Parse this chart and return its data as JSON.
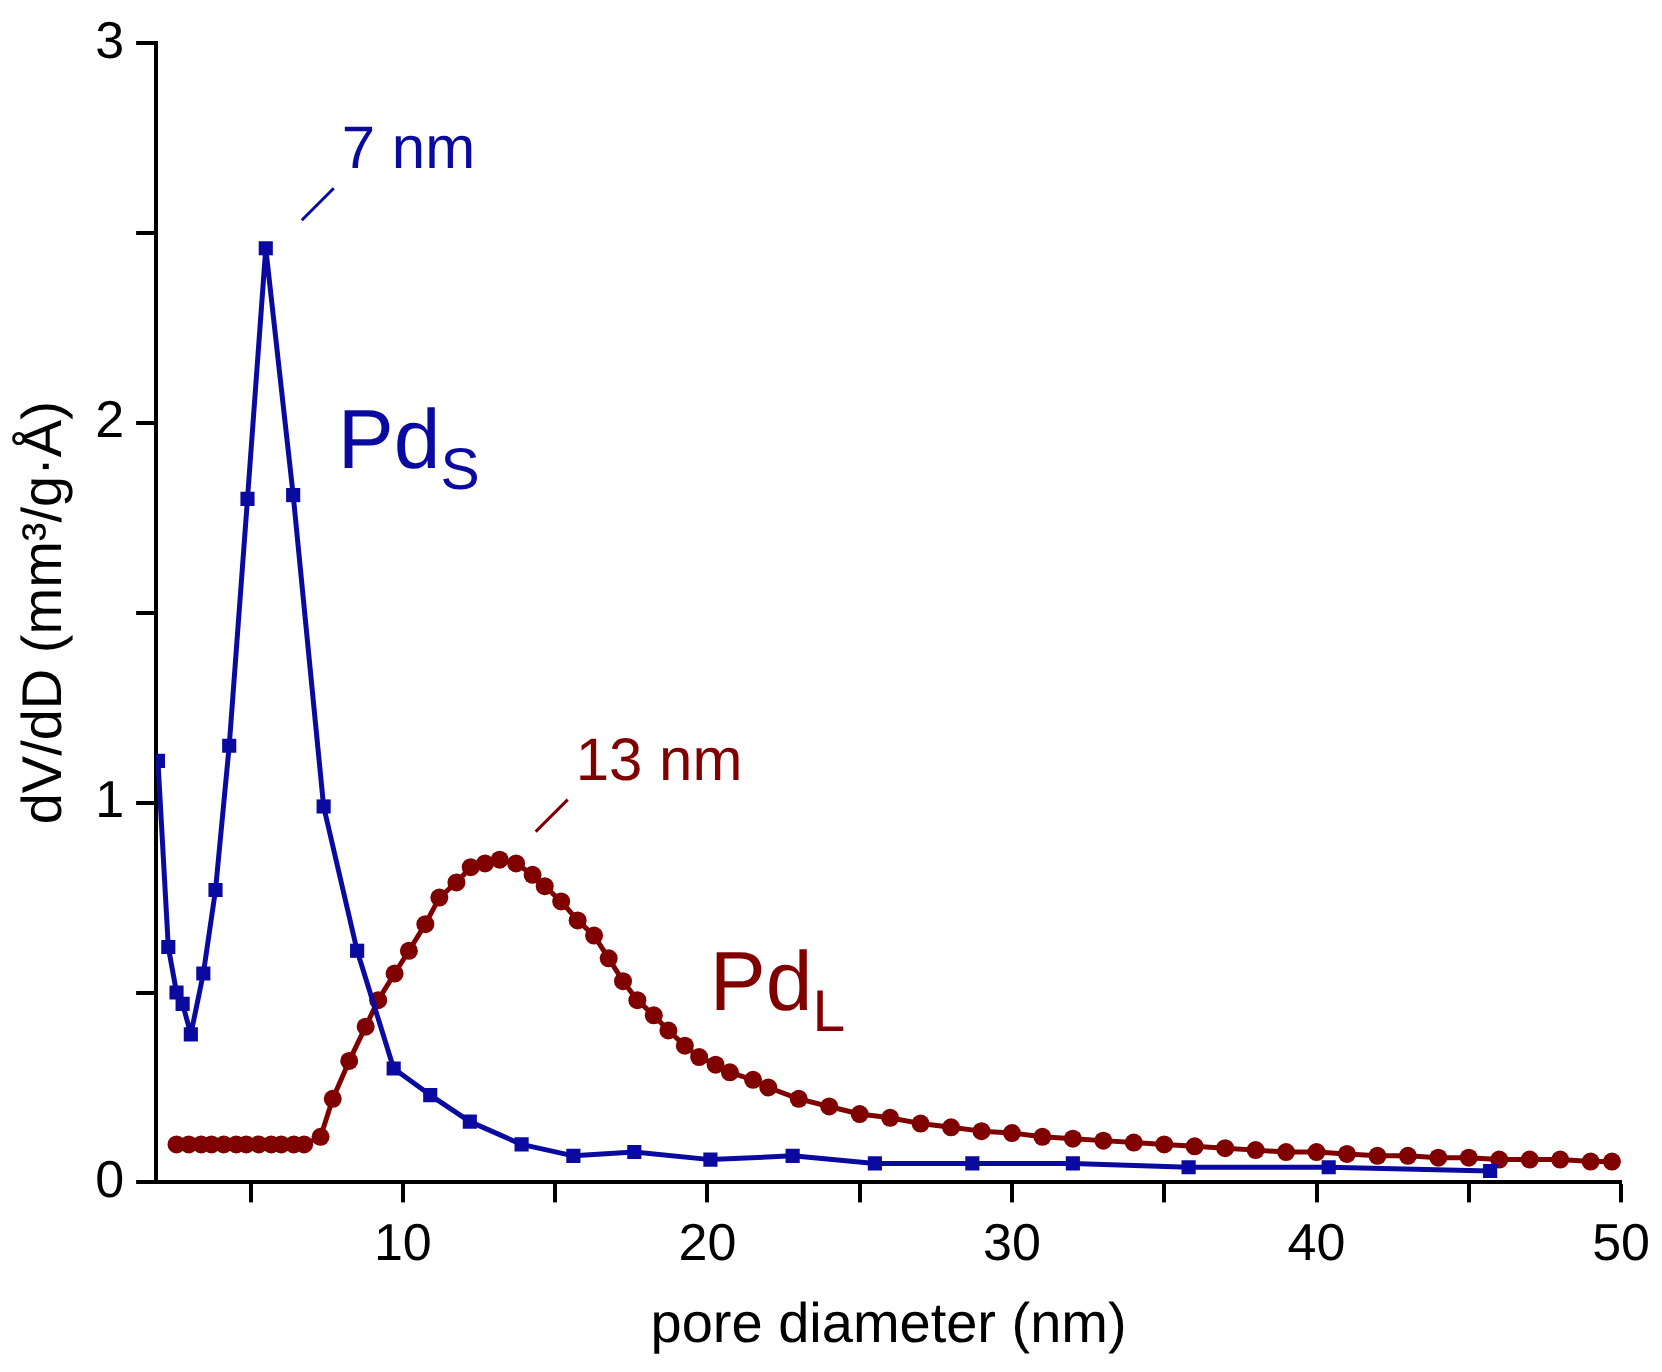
{
  "chart_data": {
    "type": "line",
    "xlabel": "pore diameter (nm)",
    "ylabel": "dV/dD (mm³/g·Å)",
    "xlim": [
      1.9,
      50
    ],
    "xticks": [
      {
        "value": 5,
        "label": null
      },
      10,
      {
        "value": 15,
        "label": null
      },
      20,
      {
        "value": 25,
        "label": null
      },
      30,
      {
        "value": 35,
        "label": null
      },
      40,
      {
        "value": 45,
        "label": null
      },
      50
    ],
    "ylim": [
      0,
      3
    ],
    "yticks": [
      0,
      {
        "value": 0.5,
        "label": null
      },
      1,
      {
        "value": 1.5,
        "label": null
      },
      2,
      {
        "value": 2.5,
        "label": null
      },
      3
    ],
    "series": [
      {
        "name": "Pd$_{S}$",
        "color": "#0a0aa0",
        "marker": "square",
        "x": [
          1.96,
          2.3,
          2.57,
          2.77,
          3.04,
          3.45,
          3.85,
          4.3,
          4.9,
          5.5,
          6.4,
          7.4,
          8.5,
          9.7,
          10.9,
          12.2,
          13.9,
          15.6,
          17.6,
          20.1,
          22.8,
          25.5,
          28.7,
          32.0,
          35.8,
          40.4,
          45.7
        ],
        "values": [
          1.11,
          0.62,
          0.5,
          0.47,
          0.39,
          0.55,
          0.77,
          1.15,
          1.8,
          2.46,
          1.81,
          0.99,
          0.61,
          0.3,
          0.23,
          0.16,
          0.1,
          0.07,
          0.08,
          0.06,
          0.07,
          0.05,
          0.05,
          0.05,
          0.04,
          0.04,
          0.03
        ]
      },
      {
        "name": "Pd$_{L}$",
        "color": "#800000",
        "marker": "circle",
        "x": [
          2.57,
          2.97,
          3.38,
          3.72,
          4.12,
          4.53,
          4.86,
          5.27,
          5.68,
          6.01,
          6.42,
          6.76,
          7.3,
          7.7,
          8.24,
          8.78,
          9.19,
          9.73,
          10.2,
          10.74,
          11.2,
          11.76,
          12.23,
          12.7,
          13.18,
          13.72,
          14.26,
          14.66,
          15.2,
          15.74,
          16.28,
          16.76,
          17.23,
          17.7,
          18.24,
          18.72,
          19.26,
          19.73,
          20.27,
          20.74,
          21.5,
          22,
          23,
          24,
          25,
          26,
          27,
          28,
          29,
          30,
          31,
          32,
          33,
          34,
          35,
          36,
          37,
          38,
          39,
          40,
          41,
          42,
          43,
          44,
          45,
          46,
          47,
          48,
          49,
          49.7
        ],
        "values": [
          0.1,
          0.1,
          0.1,
          0.1,
          0.1,
          0.1,
          0.1,
          0.1,
          0.1,
          0.1,
          0.1,
          0.1,
          0.12,
          0.22,
          0.32,
          0.41,
          0.48,
          0.55,
          0.61,
          0.68,
          0.75,
          0.79,
          0.83,
          0.84,
          0.85,
          0.84,
          0.81,
          0.78,
          0.74,
          0.69,
          0.65,
          0.59,
          0.53,
          0.48,
          0.44,
          0.4,
          0.36,
          0.33,
          0.31,
          0.29,
          0.27,
          0.25,
          0.22,
          0.2,
          0.18,
          0.17,
          0.155,
          0.145,
          0.135,
          0.13,
          0.12,
          0.115,
          0.11,
          0.105,
          0.1,
          0.095,
          0.09,
          0.085,
          0.08,
          0.08,
          0.075,
          0.07,
          0.07,
          0.065,
          0.065,
          0.06,
          0.06,
          0.06,
          0.055,
          0.055
        ]
      }
    ],
    "annotations": [
      {
        "text": "7 nm",
        "x": 5.5,
        "y": 2.46
      },
      {
        "text": "13 nm",
        "x": 13.18,
        "y": 0.85
      }
    ]
  }
}
